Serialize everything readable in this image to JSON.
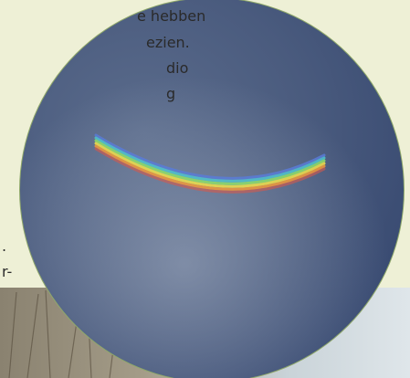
{
  "text_lines": [
    "e hebben",
    "ezien.",
    "dio",
    "g",
    ".",
    "r-"
  ]
}
